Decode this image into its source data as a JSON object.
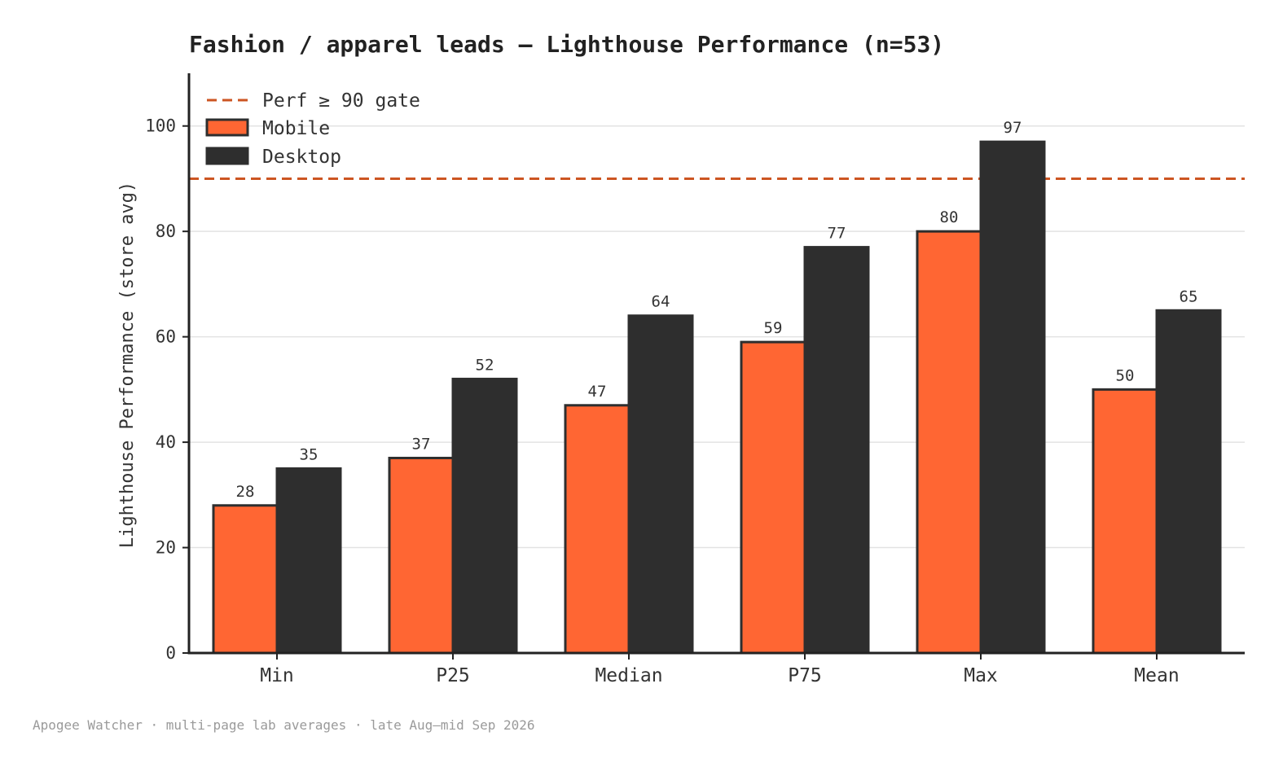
{
  "chart_data": {
    "type": "bar",
    "title": "Fashion / apparel leads — Lighthouse Performance (n=53)",
    "xlabel": "",
    "ylabel": "Lighthouse Performance (store avg)",
    "categories": [
      "Min",
      "P25",
      "Median",
      "P75",
      "Max",
      "Mean"
    ],
    "series": [
      {
        "name": "Mobile",
        "values": [
          28,
          37,
          47,
          59,
          80,
          50
        ],
        "color": "#ff6633"
      },
      {
        "name": "Desktop",
        "values": [
          35,
          52,
          64,
          77,
          97,
          65
        ],
        "color": "#2e2e2e"
      }
    ],
    "ylim": [
      0,
      110
    ],
    "yticks": [
      0,
      20,
      40,
      60,
      80,
      100
    ],
    "reference_line": {
      "label": "Perf ≥ 90 gate",
      "value": 90,
      "color": "#cc5522",
      "style": "dashed"
    },
    "grid": "horizontal",
    "legend_position": "top-left",
    "footnote": "Apogee Watcher · multi-page lab averages · late Aug–mid Sep 2026"
  }
}
